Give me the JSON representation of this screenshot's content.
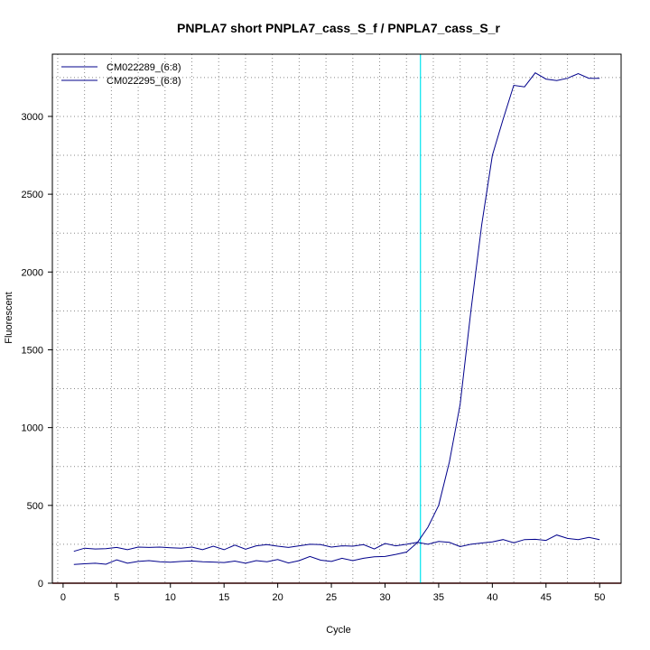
{
  "chart_data": {
    "type": "line",
    "title": "PNPLA7 short PNPLA7_cass_S_f / PNPLA7_cass_S_r",
    "xlabel": "Cycle",
    "ylabel": "Fluorescent",
    "xlim": [
      -1,
      52
    ],
    "ylim": [
      0,
      3400
    ],
    "xticks": [
      0,
      5,
      10,
      15,
      20,
      25,
      30,
      35,
      40,
      45,
      50
    ],
    "yticks": [
      0,
      500,
      1000,
      1500,
      2000,
      2500,
      3000
    ],
    "grid": "dotted",
    "legend_position": "top-left",
    "threshold_x": 33.3,
    "colors": {
      "series": "#00008b",
      "threshold": "#00e5ee",
      "baseline": "#8b0000",
      "grid": "#888888"
    },
    "series": [
      {
        "name": "CM022289_(6:8)",
        "x": [
          1,
          2,
          3,
          4,
          5,
          6,
          7,
          8,
          9,
          10,
          11,
          12,
          13,
          14,
          15,
          16,
          17,
          18,
          19,
          20,
          21,
          22,
          23,
          24,
          25,
          26,
          27,
          28,
          29,
          30,
          31,
          32,
          33,
          34,
          35,
          36,
          37,
          38,
          39,
          40,
          41,
          42,
          43,
          44,
          45,
          46,
          47,
          48,
          49,
          50
        ],
        "values": [
          120,
          125,
          128,
          122,
          150,
          128,
          140,
          145,
          138,
          135,
          140,
          143,
          138,
          136,
          133,
          142,
          128,
          145,
          138,
          152,
          130,
          145,
          172,
          148,
          140,
          160,
          145,
          160,
          170,
          172,
          185,
          200,
          260,
          360,
          500,
          780,
          1150,
          1750,
          2300,
          2750,
          2980,
          3200,
          3190,
          3280,
          3240,
          3230,
          3245,
          3275,
          3245,
          3245
        ]
      },
      {
        "name": "CM022295_(6:8)",
        "x": [
          1,
          2,
          3,
          4,
          5,
          6,
          7,
          8,
          9,
          10,
          11,
          12,
          13,
          14,
          15,
          16,
          17,
          18,
          19,
          20,
          21,
          22,
          23,
          24,
          25,
          26,
          27,
          28,
          29,
          30,
          31,
          32,
          33,
          34,
          35,
          36,
          37,
          38,
          39,
          40,
          41,
          42,
          43,
          44,
          45,
          46,
          47,
          48,
          49,
          50
        ],
        "values": [
          205,
          225,
          220,
          222,
          230,
          215,
          232,
          230,
          232,
          228,
          225,
          232,
          215,
          238,
          215,
          245,
          218,
          240,
          248,
          238,
          230,
          240,
          250,
          248,
          232,
          240,
          238,
          248,
          220,
          255,
          240,
          250,
          262,
          250,
          268,
          262,
          235,
          250,
          258,
          265,
          280,
          260,
          280,
          282,
          275,
          310,
          288,
          280,
          295,
          280
        ]
      }
    ]
  }
}
